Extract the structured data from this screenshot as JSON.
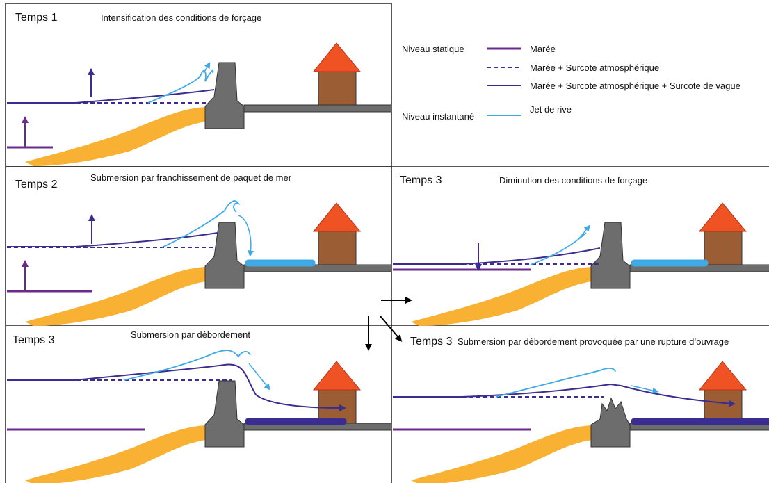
{
  "panels": [
    {
      "label": "Temps 1",
      "title": "Intensification des conditions de forçage"
    },
    {
      "label": "Temps 2",
      "title": "Submersion par franchissement de paquet de mer"
    },
    {
      "label": "Temps 3",
      "title": "Diminution des conditions de forçage"
    },
    {
      "label": "Temps 3",
      "title": "Submersion par débordement"
    },
    {
      "label": "Temps 3",
      "title": "Submersion par débordement provoquée par une rupture d’ouvrage"
    }
  ],
  "legend": {
    "static_heading": "Niveau statique",
    "instant_heading": "Niveau instantané",
    "items": [
      "Marée",
      "Marée + Surcote atmosphérique",
      "Marée + Surcote atmosphérique + Surcote de vague",
      "Jet de rive"
    ]
  }
}
